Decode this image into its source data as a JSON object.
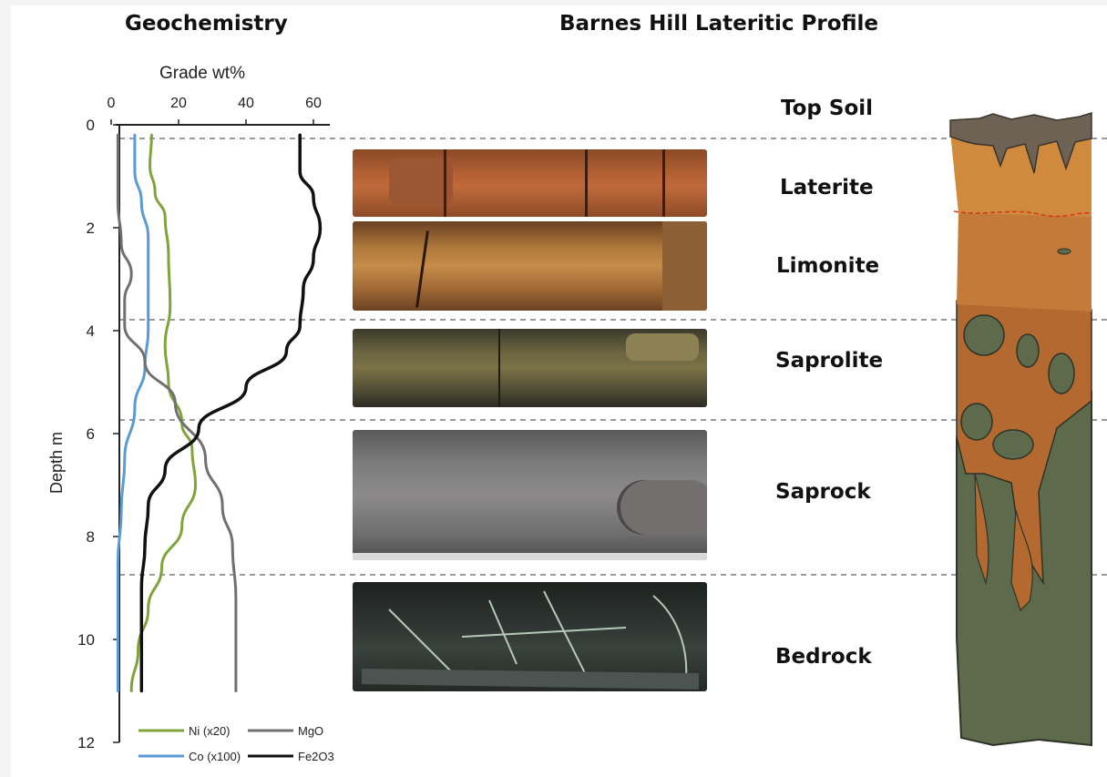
{
  "titles": {
    "geochemistry": "Geochemistry",
    "profile": "Barnes Hill  Lateritic Profile"
  },
  "chart_data": {
    "type": "line",
    "title": "Geochemistry",
    "xlabel": "Grade wt%",
    "ylabel": "Depth m",
    "xlim": [
      0,
      60
    ],
    "ylim": [
      0,
      12
    ],
    "xticks": [
      "0",
      "20",
      "40",
      "60"
    ],
    "yticks": [
      "0",
      "2",
      "4",
      "6",
      "8",
      "10",
      "12"
    ],
    "series": [
      {
        "name": "Ni (x20)",
        "color": "#7ea43a",
        "points": [
          [
            12,
            0.2
          ],
          [
            11.5,
            0.8
          ],
          [
            13,
            1.3
          ],
          [
            16,
            1.8
          ],
          [
            17,
            2.5
          ],
          [
            17.5,
            3.5
          ],
          [
            16,
            4.3
          ],
          [
            17,
            5
          ],
          [
            21,
            5.8
          ],
          [
            24,
            6.3
          ],
          [
            25,
            7
          ],
          [
            21,
            7.8
          ],
          [
            15,
            8.6
          ],
          [
            11,
            9.4
          ],
          [
            8,
            10.2
          ],
          [
            6,
            11
          ]
        ]
      },
      {
        "name": "Co (x100)",
        "color": "#5b9bd5",
        "points": [
          [
            7,
            0.2
          ],
          [
            7,
            0.9
          ],
          [
            9,
            1.5
          ],
          [
            11,
            2.2
          ],
          [
            11,
            3.3
          ],
          [
            11,
            4
          ],
          [
            10,
            4.7
          ],
          [
            7,
            5.5
          ],
          [
            4,
            6.5
          ],
          [
            3,
            7.5
          ],
          [
            2,
            8.5
          ],
          [
            2,
            9.5
          ],
          [
            2,
            11
          ]
        ]
      },
      {
        "name": "MgO",
        "color": "#707070",
        "points": [
          [
            2,
            0.2
          ],
          [
            2,
            1.5
          ],
          [
            3,
            2.3
          ],
          [
            6,
            2.9
          ],
          [
            4,
            3.4
          ],
          [
            4,
            3.9
          ],
          [
            10,
            4.6
          ],
          [
            19,
            5.4
          ],
          [
            28,
            6.5
          ],
          [
            33,
            7.4
          ],
          [
            36,
            8.2
          ],
          [
            37,
            9.2
          ],
          [
            37,
            10.2
          ],
          [
            37,
            11
          ]
        ]
      },
      {
        "name": "Fe2O3",
        "color": "#111111",
        "points": [
          [
            56,
            0.2
          ],
          [
            56,
            0.9
          ],
          [
            60,
            1.4
          ],
          [
            62,
            2
          ],
          [
            60,
            2.6
          ],
          [
            57,
            3.2
          ],
          [
            56,
            3.9
          ],
          [
            52,
            4.4
          ],
          [
            40,
            5.1
          ],
          [
            26,
            5.9
          ],
          [
            16,
            6.7
          ],
          [
            11,
            7.4
          ],
          [
            10,
            8.2
          ],
          [
            9,
            9
          ],
          [
            9,
            10
          ],
          [
            9,
            11
          ]
        ]
      }
    ],
    "legend_position": "bottom"
  },
  "zones": [
    {
      "label": "Top Soil"
    },
    {
      "label": "Laterite"
    },
    {
      "label": "Limonite"
    },
    {
      "label": "Saprolite"
    },
    {
      "label": "Saprock"
    },
    {
      "label": "Bedrock"
    }
  ],
  "colors": {
    "top_soil": "#6e6254",
    "laterite": "#d08a3e",
    "limonite": "#c47b3a",
    "saprolite": "#b3692f",
    "saprock_bedrock": "#5e6a4c",
    "boundary_red": "#d9341c"
  }
}
